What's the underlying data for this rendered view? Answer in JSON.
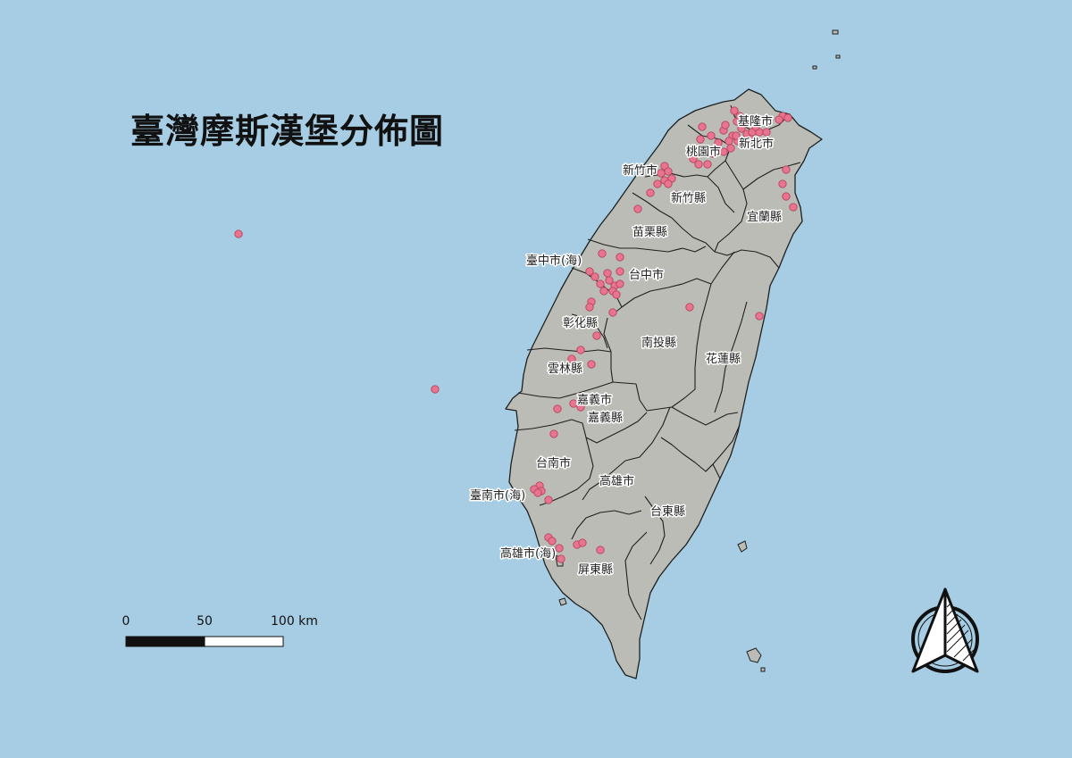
{
  "map": {
    "title": "臺灣摩斯漢堡分佈圖",
    "colors": {
      "sea": "#a6cde3",
      "land": "#bcbcb6",
      "boundary": "#1f1f1f",
      "point_fill": "#e8748f",
      "point_stroke": "#b54660"
    },
    "regions": [
      {
        "name": "基隆市"
      },
      {
        "name": "新北市"
      },
      {
        "name": "桃園市"
      },
      {
        "name": "新竹市"
      },
      {
        "name": "新竹縣"
      },
      {
        "name": "宜蘭縣"
      },
      {
        "name": "苗栗縣"
      },
      {
        "name": "臺中市(海)"
      },
      {
        "name": "台中市"
      },
      {
        "name": "彰化縣"
      },
      {
        "name": "南投縣"
      },
      {
        "name": "花蓮縣"
      },
      {
        "name": "雲林縣"
      },
      {
        "name": "嘉義市"
      },
      {
        "name": "嘉義縣"
      },
      {
        "name": "台南市"
      },
      {
        "name": "高雄市"
      },
      {
        "name": "臺南市(海)"
      },
      {
        "name": "台東縣"
      },
      {
        "name": "高雄市(海)"
      },
      {
        "name": "屏東縣"
      }
    ],
    "scale_bar": {
      "ticks": [
        "0",
        "50",
        "100 km"
      ]
    },
    "north_arrow": {
      "icon": "north-arrow-icon"
    }
  }
}
